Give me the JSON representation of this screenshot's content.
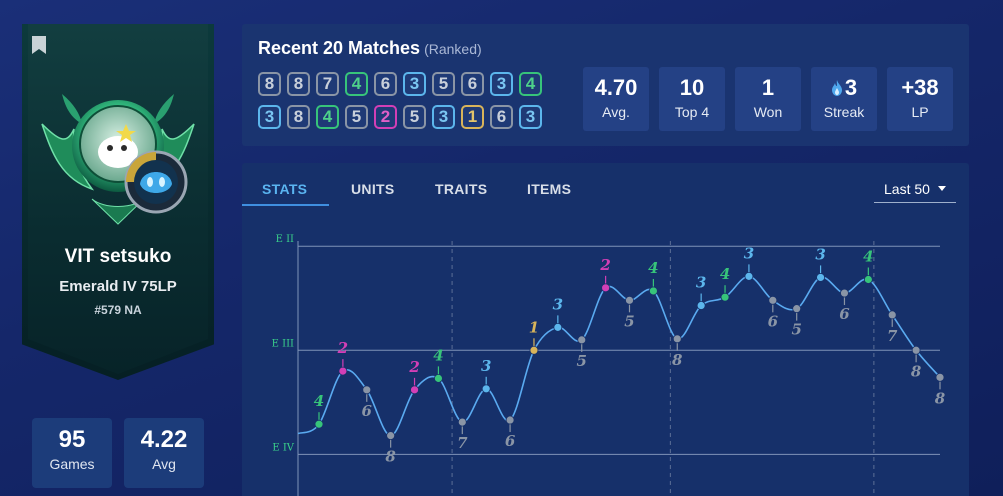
{
  "profile": {
    "name": "VIT setsuko",
    "rank": "Emerald IV 75LP",
    "ladder": "#579 NA",
    "games_value": "95",
    "games_label": "Games",
    "avg_value": "4.22",
    "avg_label": "Avg",
    "colors": {
      "banner": "#0a2c30",
      "accent": "#3fb58a"
    }
  },
  "recent": {
    "title": "Recent 20 Matches",
    "subtitle": "(Ranked)",
    "placements": [
      8,
      8,
      7,
      4,
      6,
      3,
      5,
      6,
      3,
      4,
      3,
      8,
      4,
      5,
      2,
      5,
      3,
      1,
      6,
      3
    ],
    "summary": [
      {
        "value": "4.70",
        "label": "Avg."
      },
      {
        "value": "10",
        "label": "Top 4"
      },
      {
        "value": "1",
        "label": "Won"
      },
      {
        "value": "3",
        "label": "Streak",
        "icon": "flame-icon"
      },
      {
        "value": "+38",
        "label": "LP"
      }
    ],
    "placement_colors": {
      "1": "#d8b45a",
      "2": "#d23fb6",
      "3": "#5cb6ec",
      "4": "#37c47a",
      "other": "#8a95a6"
    }
  },
  "stats": {
    "tabs": [
      "STATS",
      "UNITS",
      "TRAITS",
      "ITEMS"
    ],
    "active_tab": "STATS",
    "filter": "Last 50"
  },
  "chart_data": {
    "type": "line",
    "y_tick_labels": [
      "E II",
      "E III",
      "E IV"
    ],
    "y_ticks": [
      2,
      3,
      4
    ],
    "ylim": [
      1.95,
      4.4
    ],
    "points": [
      {
        "rank": 3.71,
        "placement": 4
      },
      {
        "rank": 3.2,
        "placement": 2
      },
      {
        "rank": 3.38,
        "placement": 6
      },
      {
        "rank": 3.82,
        "placement": 8
      },
      {
        "rank": 3.38,
        "placement": 2
      },
      {
        "rank": 3.27,
        "placement": 4
      },
      {
        "rank": 3.69,
        "placement": 7
      },
      {
        "rank": 3.37,
        "placement": 3
      },
      {
        "rank": 3.67,
        "placement": 6
      },
      {
        "rank": 3.0,
        "placement": 1
      },
      {
        "rank": 2.78,
        "placement": 3
      },
      {
        "rank": 2.9,
        "placement": 5
      },
      {
        "rank": 2.4,
        "placement": 2
      },
      {
        "rank": 2.52,
        "placement": 5
      },
      {
        "rank": 2.43,
        "placement": 4
      },
      {
        "rank": 2.89,
        "placement": 8
      },
      {
        "rank": 2.57,
        "placement": 3
      },
      {
        "rank": 2.49,
        "placement": 4
      },
      {
        "rank": 2.29,
        "placement": 3
      },
      {
        "rank": 2.52,
        "placement": 6
      },
      {
        "rank": 2.6,
        "placement": 5
      },
      {
        "rank": 2.3,
        "placement": 3
      },
      {
        "rank": 2.45,
        "placement": 6
      },
      {
        "rank": 2.32,
        "placement": 4
      },
      {
        "rank": 2.66,
        "placement": 7
      },
      {
        "rank": 3.0,
        "placement": 8
      },
      {
        "rank": 3.26,
        "placement": 8
      }
    ],
    "start_rank": 3.8,
    "line_color": "#5aaaf0"
  }
}
